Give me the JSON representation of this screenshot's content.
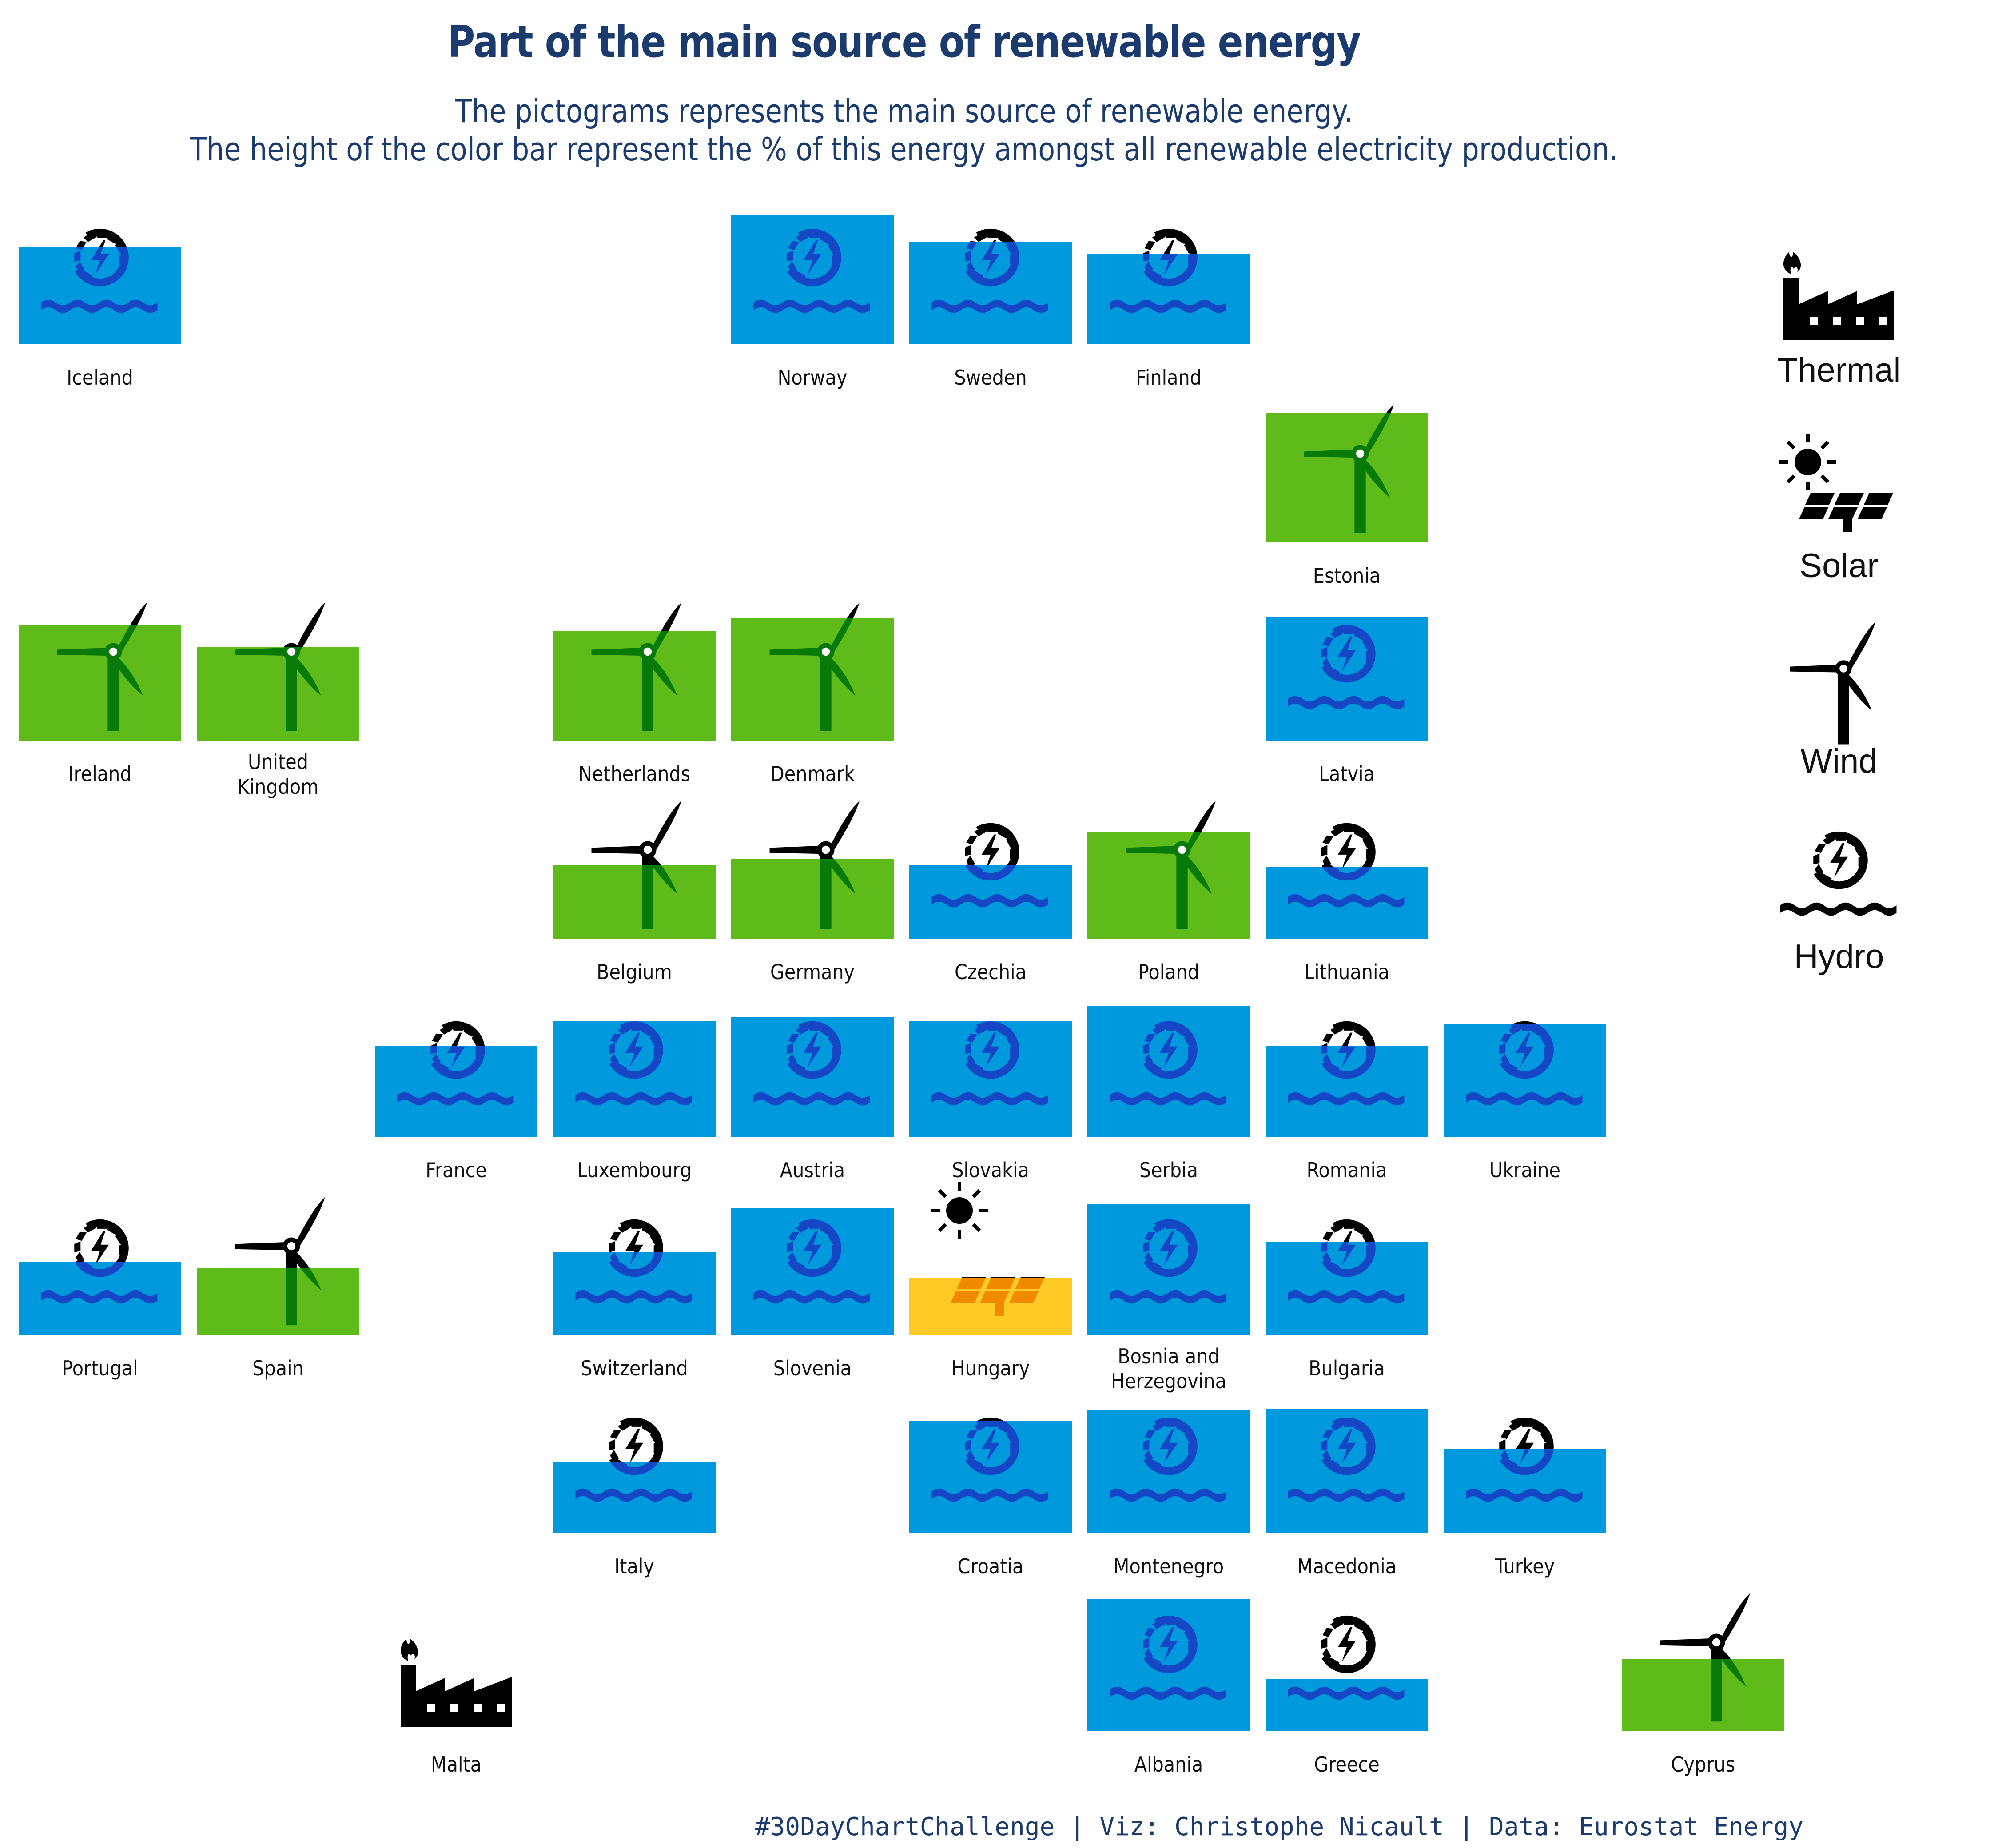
{
  "title": "Part of the main source of renewable energy",
  "subtitle_lines": [
    "The pictograms represents the main source of renewable energy.",
    "The height of the color bar represent the % of this energy amongst all renewable electricity production."
  ],
  "caption": "#30DayChartChallenge | Viz: Christophe Nicault | Data: Eurostat Energy",
  "colors": {
    "Hydro": "#0099dd",
    "Wind": "#5fbb1a",
    "Solar": "#ffc926",
    "Thermal": "#000000",
    "hydro_icon": "#1546c4",
    "wind_icon": "#087a0a"
  },
  "legend": [
    {
      "source": "Thermal",
      "label": "Thermal",
      "icon": "factory-icon"
    },
    {
      "source": "Solar",
      "label": "Solar",
      "icon": "solar-panel-icon"
    },
    {
      "source": "Wind",
      "label": "Wind",
      "icon": "wind-turbine-icon"
    },
    {
      "source": "Hydro",
      "label": "Hydro",
      "icon": "hydro-turbine-icon"
    }
  ],
  "chart_data": {
    "type": "tile-map",
    "value_unit": "% of renewable electricity production",
    "ylim": [
      0,
      100
    ],
    "countries": [
      {
        "name": "Iceland",
        "row": 0,
        "col": 0,
        "source": "Hydro",
        "share": 73
      },
      {
        "name": "Norway",
        "row": 0,
        "col": 4,
        "source": "Hydro",
        "share": 97
      },
      {
        "name": "Sweden",
        "row": 0,
        "col": 5,
        "source": "Hydro",
        "share": 77
      },
      {
        "name": "Finland",
        "row": 0,
        "col": 6,
        "source": "Hydro",
        "share": 68
      },
      {
        "name": "Estonia",
        "row": 1,
        "col": 7,
        "source": "Wind",
        "share": 97
      },
      {
        "name": "Ireland",
        "row": 2,
        "col": 0,
        "source": "Wind",
        "share": 87
      },
      {
        "name": "United Kingdom",
        "row": 2,
        "col": 1,
        "source": "Wind",
        "share": 70
      },
      {
        "name": "Netherlands",
        "row": 2,
        "col": 3,
        "source": "Wind",
        "share": 82
      },
      {
        "name": "Denmark",
        "row": 2,
        "col": 4,
        "source": "Wind",
        "share": 92
      },
      {
        "name": "Latvia",
        "row": 2,
        "col": 7,
        "source": "Hydro",
        "share": 93
      },
      {
        "name": "Belgium",
        "row": 3,
        "col": 3,
        "source": "Wind",
        "share": 55
      },
      {
        "name": "Germany",
        "row": 3,
        "col": 4,
        "source": "Wind",
        "share": 60
      },
      {
        "name": "Czechia",
        "row": 3,
        "col": 5,
        "source": "Hydro",
        "share": 55
      },
      {
        "name": "Poland",
        "row": 3,
        "col": 6,
        "source": "Wind",
        "share": 80
      },
      {
        "name": "Lithuania",
        "row": 3,
        "col": 7,
        "source": "Hydro",
        "share": 54
      },
      {
        "name": "France",
        "row": 4,
        "col": 2,
        "source": "Hydro",
        "share": 68
      },
      {
        "name": "Luxembourg",
        "row": 4,
        "col": 3,
        "source": "Hydro",
        "share": 87
      },
      {
        "name": "Austria",
        "row": 4,
        "col": 4,
        "source": "Hydro",
        "share": 90
      },
      {
        "name": "Slovakia",
        "row": 4,
        "col": 5,
        "source": "Hydro",
        "share": 87
      },
      {
        "name": "Serbia",
        "row": 4,
        "col": 6,
        "source": "Hydro",
        "share": 98
      },
      {
        "name": "Romania",
        "row": 4,
        "col": 7,
        "source": "Hydro",
        "share": 68
      },
      {
        "name": "Ukraine",
        "row": 4,
        "col": 8,
        "source": "Hydro",
        "share": 85
      },
      {
        "name": "Portugal",
        "row": 5,
        "col": 0,
        "source": "Hydro",
        "share": 55
      },
      {
        "name": "Spain",
        "row": 5,
        "col": 1,
        "source": "Wind",
        "share": 50
      },
      {
        "name": "Switzerland",
        "row": 5,
        "col": 3,
        "source": "Hydro",
        "share": 62
      },
      {
        "name": "Slovenia",
        "row": 5,
        "col": 4,
        "source": "Hydro",
        "share": 95
      },
      {
        "name": "Hungary",
        "row": 5,
        "col": 5,
        "source": "Solar",
        "share": 43
      },
      {
        "name": "Bosnia and Herzegovina",
        "row": 5,
        "col": 6,
        "source": "Hydro",
        "share": 98
      },
      {
        "name": "Bulgaria",
        "row": 5,
        "col": 7,
        "source": "Hydro",
        "share": 70
      },
      {
        "name": "Italy",
        "row": 6,
        "col": 3,
        "source": "Hydro",
        "share": 53
      },
      {
        "name": "Croatia",
        "row": 6,
        "col": 5,
        "source": "Hydro",
        "share": 84
      },
      {
        "name": "Montenegro",
        "row": 6,
        "col": 6,
        "source": "Hydro",
        "share": 92
      },
      {
        "name": "Macedonia",
        "row": 6,
        "col": 7,
        "source": "Hydro",
        "share": 93
      },
      {
        "name": "Turkey",
        "row": 6,
        "col": 8,
        "source": "Hydro",
        "share": 63
      },
      {
        "name": "Malta",
        "row": 7,
        "col": 2,
        "source": "Thermal",
        "share": 0
      },
      {
        "name": "Albania",
        "row": 7,
        "col": 6,
        "source": "Hydro",
        "share": 99
      },
      {
        "name": "Greece",
        "row": 7,
        "col": 7,
        "source": "Hydro",
        "share": 39
      },
      {
        "name": "Cyprus",
        "row": 7,
        "col": 9,
        "source": "Wind",
        "share": 54
      }
    ]
  }
}
